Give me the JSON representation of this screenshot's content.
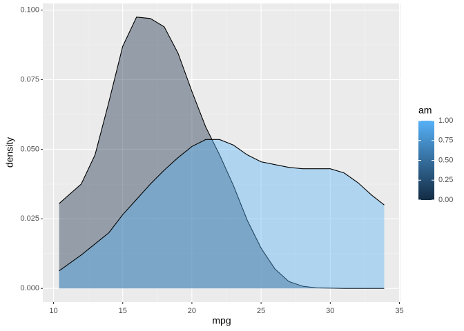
{
  "chart_data": {
    "type": "density",
    "xlabel": "mpg",
    "ylabel": "density",
    "x": [
      10.4,
      12,
      13,
      14,
      15,
      16,
      17,
      18,
      19,
      20,
      21,
      22,
      23,
      24,
      25,
      26,
      27,
      28,
      29,
      30,
      31,
      32,
      33,
      33.9
    ],
    "series": [
      {
        "color": "#132B43",
        "values": [
          0.0305,
          0.0375,
          0.048,
          0.067,
          0.087,
          0.0975,
          0.097,
          0.094,
          0.0845,
          0.0708,
          0.058,
          0.048,
          0.037,
          0.0245,
          0.0145,
          0.007,
          0.0025,
          0.0008,
          0.0002,
          0.0001,
          0,
          0,
          0,
          0
        ]
      },
      {
        "color": "#56B1F7",
        "values": [
          0.0063,
          0.012,
          0.016,
          0.02,
          0.0265,
          0.032,
          0.0375,
          0.0425,
          0.047,
          0.051,
          0.0535,
          0.0535,
          0.0515,
          0.048,
          0.0455,
          0.0445,
          0.0435,
          0.043,
          0.043,
          0.043,
          0.0415,
          0.038,
          0.0335,
          0.03
        ]
      }
    ],
    "alpha": 0.4,
    "xlim": [
      9.225,
      35.075
    ],
    "xticks": [
      10,
      15,
      20,
      25,
      30,
      35
    ],
    "ylim": [
      -0.0049,
      0.1024
    ],
    "yticks": [
      {
        "value": 0,
        "label": "0.000"
      },
      {
        "value": 0.025,
        "label": "0.025"
      },
      {
        "value": 0.05,
        "label": "0.050"
      },
      {
        "value": 0.075,
        "label": "0.075"
      },
      {
        "value": 0.1,
        "label": "0.100"
      }
    ],
    "grid": true,
    "legend": {
      "title": "am",
      "position": "right",
      "colors": [
        "#132B43",
        "#56B1F7"
      ],
      "lim": [
        0,
        1
      ],
      "ticks": [
        {
          "value": 0,
          "label": "0.00"
        },
        {
          "value": 0.25,
          "label": "0.25"
        },
        {
          "value": 0.5,
          "label": "0.50"
        },
        {
          "value": 0.75,
          "label": "0.75"
        },
        {
          "value": 1,
          "label": "1.00"
        }
      ]
    }
  }
}
